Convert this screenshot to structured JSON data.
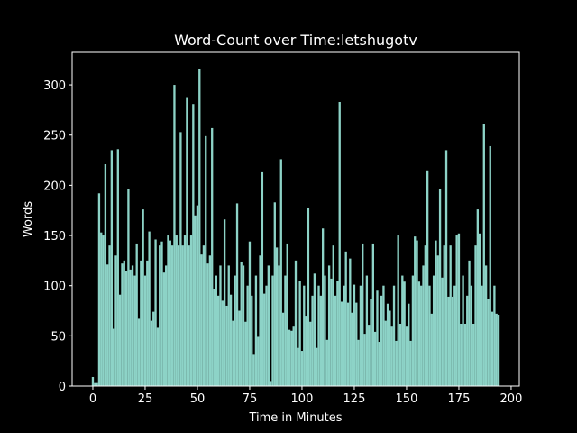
{
  "chart_data": {
    "type": "bar",
    "title": "Word-Count over Time:letshugotv",
    "xlabel": "Time in Minutes",
    "ylabel": "Words",
    "color": "#8dd3c7",
    "bar_width": 1,
    "xlim": [
      -9.9,
      203.9
    ],
    "ylim": [
      0,
      332.4
    ],
    "xticks": [
      0,
      25,
      50,
      75,
      100,
      125,
      150,
      175,
      200
    ],
    "yticks": [
      0,
      50,
      100,
      150,
      200,
      250,
      300
    ],
    "x": [
      0,
      1,
      2,
      3,
      4,
      5,
      6,
      7,
      8,
      9,
      10,
      11,
      12,
      13,
      14,
      15,
      16,
      17,
      18,
      19,
      20,
      21,
      22,
      23,
      24,
      25,
      26,
      27,
      28,
      29,
      30,
      31,
      32,
      33,
      34,
      35,
      36,
      37,
      38,
      39,
      40,
      41,
      42,
      43,
      44,
      45,
      46,
      47,
      48,
      49,
      50,
      51,
      52,
      53,
      54,
      55,
      56,
      57,
      58,
      59,
      60,
      61,
      62,
      63,
      64,
      65,
      66,
      67,
      68,
      69,
      70,
      71,
      72,
      73,
      74,
      75,
      76,
      77,
      78,
      79,
      80,
      81,
      82,
      83,
      84,
      85,
      86,
      87,
      88,
      89,
      90,
      91,
      92,
      93,
      94,
      95,
      96,
      97,
      98,
      99,
      100,
      101,
      102,
      103,
      104,
      105,
      106,
      107,
      108,
      109,
      110,
      111,
      112,
      113,
      114,
      115,
      116,
      117,
      118,
      119,
      120,
      121,
      122,
      123,
      124,
      125,
      126,
      127,
      128,
      129,
      130,
      131,
      132,
      133,
      134,
      135,
      136,
      137,
      138,
      139,
      140,
      141,
      142,
      143,
      144,
      145,
      146,
      147,
      148,
      149,
      150,
      151,
      152,
      153,
      154,
      155,
      156,
      157,
      158,
      159,
      160,
      161,
      162,
      163,
      164,
      165,
      166,
      167,
      168,
      169,
      170,
      171,
      172,
      173,
      174,
      175,
      176,
      177,
      178,
      179,
      180,
      181,
      182,
      183,
      184,
      185,
      186,
      187,
      188,
      189,
      190,
      191,
      192,
      193,
      194
    ],
    "values": [
      9,
      3,
      3,
      192,
      153,
      150,
      221,
      121,
      140,
      235,
      57,
      130,
      236,
      91,
      122,
      125,
      115,
      196,
      116,
      120,
      110,
      142,
      67,
      125,
      176,
      110,
      125,
      154,
      65,
      74,
      146,
      58,
      140,
      144,
      113,
      120,
      150,
      145,
      140,
      300,
      150,
      140,
      253,
      140,
      150,
      287,
      140,
      150,
      281,
      170,
      180,
      316,
      131,
      140,
      249,
      122,
      130,
      257,
      97,
      110,
      90,
      120,
      85,
      166,
      80,
      120,
      91,
      65,
      110,
      182,
      75,
      124,
      120,
      64,
      100,
      144,
      90,
      32,
      110,
      49,
      130,
      213,
      92,
      100,
      120,
      5,
      110,
      183,
      138,
      120,
      226,
      73,
      110,
      142,
      56,
      55,
      60,
      125,
      38,
      105,
      35,
      100,
      70,
      177,
      64,
      90,
      112,
      38,
      100,
      90,
      157,
      110,
      46,
      120,
      107,
      140,
      90,
      105,
      283,
      84,
      100,
      134,
      83,
      127,
      73,
      101,
      83,
      46,
      100,
      142,
      52,
      110,
      61,
      87,
      142,
      54,
      95,
      44,
      90,
      100,
      65,
      82,
      75,
      60,
      100,
      45,
      150,
      62,
      110,
      104,
      60,
      82,
      45,
      110,
      149,
      145,
      104,
      100,
      120,
      140,
      214,
      100,
      72,
      110,
      145,
      130,
      196,
      108,
      140,
      235,
      89,
      140,
      89,
      100,
      150,
      152,
      62,
      110,
      62,
      90,
      125,
      100,
      62,
      140,
      176,
      152,
      100,
      261,
      120,
      87,
      239,
      74,
      100,
      72,
      71
    ]
  }
}
